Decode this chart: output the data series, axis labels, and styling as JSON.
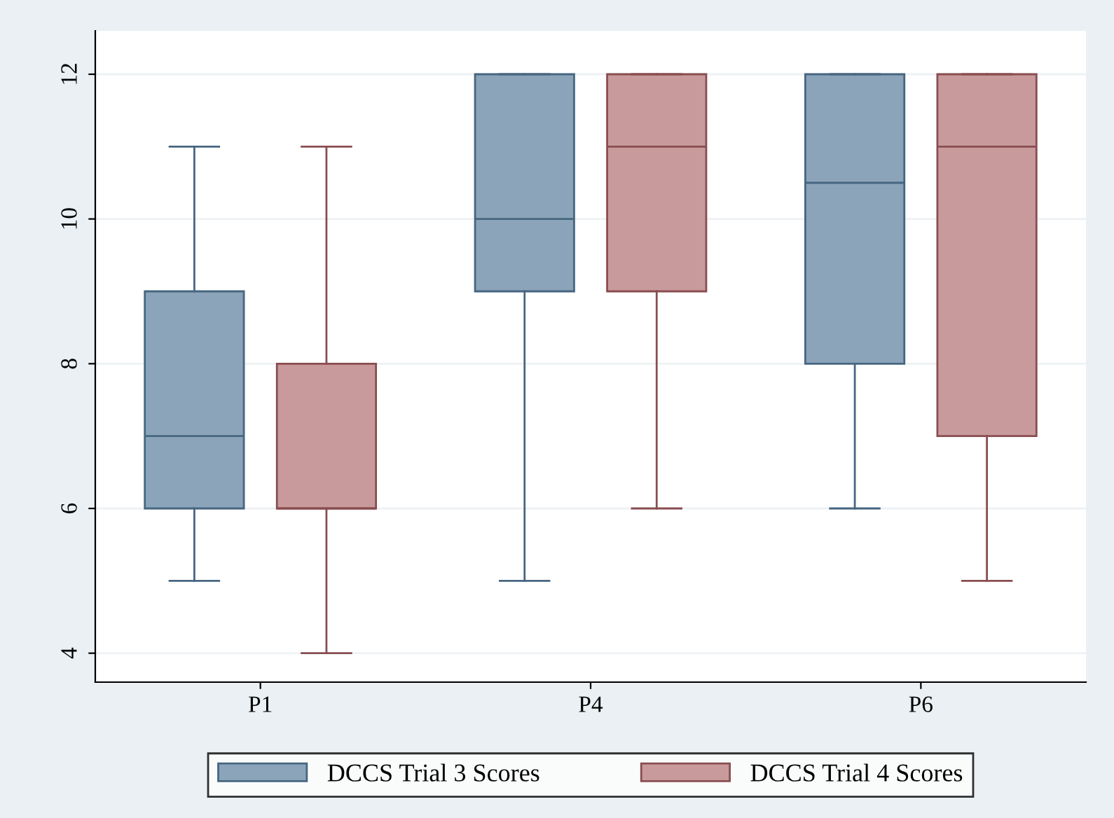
{
  "chart_data": {
    "type": "box",
    "categories": [
      "P1",
      "P4",
      "P6"
    ],
    "series": [
      {
        "name": "DCCS Trial 3 Scores",
        "color": "#8ba4b9",
        "boxes": [
          {
            "low": 5,
            "q1": 6,
            "median": 7,
            "q3": 9,
            "high": 11
          },
          {
            "low": 5,
            "q1": 9,
            "median": 10,
            "q3": 12,
            "high": 12
          },
          {
            "low": 6,
            "q1": 8,
            "median": 10.5,
            "q3": 12,
            "high": 12
          }
        ]
      },
      {
        "name": "DCCS Trial 4 Scores",
        "color": "#c89a9c",
        "boxes": [
          {
            "low": 4,
            "q1": 6,
            "median": 6,
            "q3": 8,
            "high": 11
          },
          {
            "low": 6,
            "q1": 9,
            "median": 11,
            "q3": 12,
            "high": 12
          },
          {
            "low": 5,
            "q1": 7,
            "median": 11,
            "q3": 12,
            "high": 12
          }
        ]
      }
    ],
    "ylim": [
      3.6,
      12.6
    ],
    "yticks": [
      4,
      6,
      8,
      10,
      12
    ],
    "grid": "y",
    "legend": "bottom"
  }
}
